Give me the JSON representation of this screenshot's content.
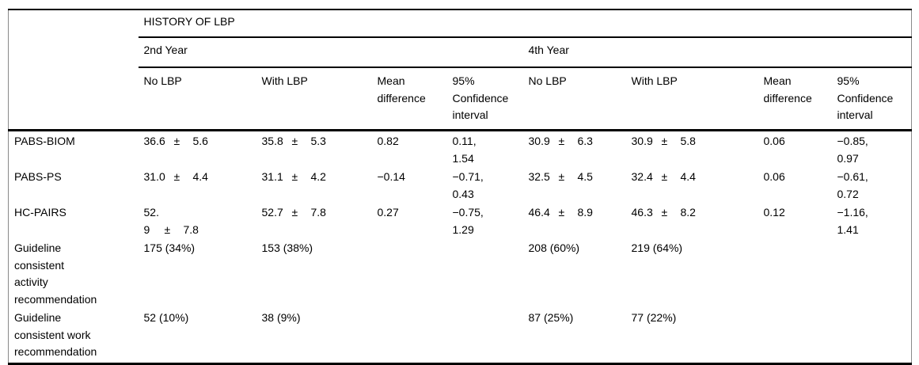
{
  "table": {
    "group_header": "HISTORY OF LBP",
    "year_headers": [
      "2nd Year",
      "4th Year"
    ],
    "col_headers": [
      "No LBP",
      "With LBP",
      "Mean difference",
      "95% Confidence interval",
      "No LBP",
      "With LBP",
      "Mean difference",
      "95% Confidence interval"
    ],
    "pm_sign": "±",
    "rows": [
      {
        "label_lines": [
          "PABS-BIOM"
        ],
        "cells": [
          {
            "t": "pm",
            "v": "36.6",
            "sd": "5.6"
          },
          {
            "t": "pm",
            "v": "35.8",
            "sd": "5.3"
          },
          {
            "t": "txt",
            "lines": [
              "0.82"
            ]
          },
          {
            "t": "txt",
            "lines": [
              "0.11,",
              "1.54"
            ]
          },
          {
            "t": "pm",
            "v": "30.9",
            "sd": "6.3"
          },
          {
            "t": "pm",
            "v": "30.9",
            "sd": "5.8"
          },
          {
            "t": "txt",
            "lines": [
              "0.06"
            ]
          },
          {
            "t": "txt",
            "lines": [
              "−0.85,",
              "0.97"
            ]
          }
        ]
      },
      {
        "label_lines": [
          "PABS-PS"
        ],
        "cells": [
          {
            "t": "pm",
            "v": "31.0",
            "sd": "4.4"
          },
          {
            "t": "pm",
            "v": "31.1",
            "sd": "4.2"
          },
          {
            "t": "txt",
            "lines": [
              "−0.14"
            ]
          },
          {
            "t": "txt",
            "lines": [
              "−0.71,",
              "0.43"
            ]
          },
          {
            "t": "pm",
            "v": "32.5",
            "sd": "4.5"
          },
          {
            "t": "pm",
            "v": "32.4",
            "sd": "4.4"
          },
          {
            "t": "txt",
            "lines": [
              "0.06"
            ]
          },
          {
            "t": "txt",
            "lines": [
              "−0.61,",
              "0.72"
            ]
          }
        ]
      },
      {
        "label_lines": [
          "HC-PAIRS"
        ],
        "cells": [
          {
            "t": "pmwrap",
            "pre": "52.",
            "v": "9",
            "sd": "7.8"
          },
          {
            "t": "pm",
            "v": "52.7",
            "sd": "7.8"
          },
          {
            "t": "txt",
            "lines": [
              "0.27"
            ]
          },
          {
            "t": "txt",
            "lines": [
              "−0.75,",
              "1.29"
            ]
          },
          {
            "t": "pm",
            "v": "46.4",
            "sd": "8.9"
          },
          {
            "t": "pm",
            "v": "46.3",
            "sd": "8.2"
          },
          {
            "t": "txt",
            "lines": [
              "0.12"
            ]
          },
          {
            "t": "txt",
            "lines": [
              "−1.16,",
              "1.41"
            ]
          }
        ]
      },
      {
        "label_lines": [
          "Guideline",
          "consistent",
          "activity",
          "recommendation"
        ],
        "cells": [
          {
            "t": "txt",
            "lines": [
              "175 (34%)"
            ]
          },
          {
            "t": "txt",
            "lines": [
              "153 (38%)"
            ]
          },
          {
            "t": "txt",
            "lines": []
          },
          {
            "t": "txt",
            "lines": []
          },
          {
            "t": "txt",
            "lines": [
              "208 (60%)"
            ]
          },
          {
            "t": "txt",
            "lines": [
              "219 (64%)"
            ]
          },
          {
            "t": "txt",
            "lines": []
          },
          {
            "t": "txt",
            "lines": []
          }
        ]
      },
      {
        "label_lines": [
          "Guideline",
          "consistent work",
          "recommendation"
        ],
        "cells": [
          {
            "t": "txt",
            "lines": [
              "52 (10%)"
            ]
          },
          {
            "t": "txt",
            "lines": [
              "38 (9%)"
            ]
          },
          {
            "t": "txt",
            "lines": []
          },
          {
            "t": "txt",
            "lines": []
          },
          {
            "t": "txt",
            "lines": [
              "87 (25%)"
            ]
          },
          {
            "t": "txt",
            "lines": [
              "77 (22%)"
            ]
          },
          {
            "t": "txt",
            "lines": []
          },
          {
            "t": "txt",
            "lines": []
          }
        ]
      }
    ]
  }
}
